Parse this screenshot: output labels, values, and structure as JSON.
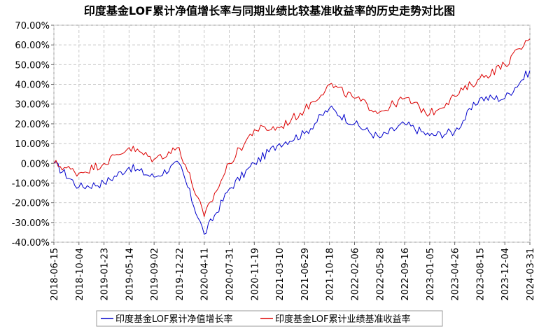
{
  "chart_data": {
    "type": "line",
    "title": "印度基金LOF累计净值增长率与同期业绩比较基准收益率的历史走势对比图",
    "xlabel": "",
    "ylabel": "",
    "ylim": [
      -40,
      70
    ],
    "yticks": [
      70,
      60,
      50,
      40,
      30,
      20,
      10,
      0,
      -10,
      -20,
      -30,
      -40
    ],
    "ytick_labels": [
      "70.00%",
      "60.00%",
      "50.00%",
      "40.00%",
      "30.00%",
      "20.00%",
      "10.00%",
      "0.00%",
      "-10.00%",
      "-20.00%",
      "-30.00%",
      "-40.00%"
    ],
    "x": [
      "2018-06-15",
      "2018-10-04",
      "2019-01-23",
      "2019-05-14",
      "2019-09-02",
      "2019-12-22",
      "2020-04-11",
      "2020-07-31",
      "2020-11-19",
      "2021-03-10",
      "2021-06-29",
      "2021-10-18",
      "2022-02-06",
      "2022-05-28",
      "2022-09-16",
      "2023-01-05",
      "2023-04-26",
      "2023-08-15",
      "2023-12-04",
      "2024-03-31"
    ],
    "grid": true,
    "legend_position": "bottom",
    "series": [
      {
        "name": "印度基金LOF累计净值增长率",
        "color": "#0000cc",
        "values": [
          0,
          -12,
          -10,
          -2,
          -7,
          0,
          -36,
          -13,
          0,
          10,
          15,
          28,
          20,
          13,
          20,
          14,
          16,
          33,
          33,
          47
        ]
      },
      {
        "name": "印度基金LOF累计业绩基准收益率",
        "color": "#dd0000",
        "values": [
          0,
          -5,
          0,
          8,
          2,
          8,
          -27,
          0,
          17,
          18,
          27,
          40,
          33,
          26,
          33,
          25,
          34,
          43,
          50,
          63
        ]
      }
    ]
  }
}
